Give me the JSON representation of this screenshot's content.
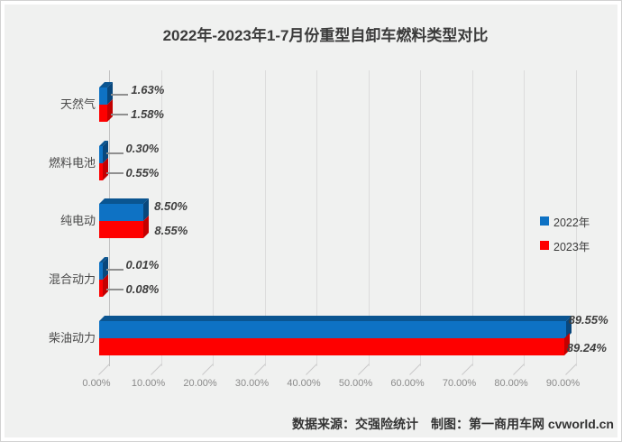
{
  "title": "2022年-2023年1-7月份重型自卸车燃料类型对比",
  "chart_data": {
    "type": "bar",
    "orientation": "horizontal",
    "style": "3d",
    "title": "2022年-2023年1-7月份重型自卸车燃料类型对比",
    "categories": [
      "天然气",
      "燃料电池",
      "纯电动",
      "混合动力",
      "柴油动力"
    ],
    "series": [
      {
        "name": "2022年",
        "color": "#0e72c4",
        "values": [
          1.63,
          0.3,
          8.5,
          0.01,
          89.55
        ],
        "labels": [
          "1.63%",
          "0.30%",
          "8.50%",
          "0.01%",
          "89.55%"
        ]
      },
      {
        "name": "2023年",
        "color": "#fe0000",
        "values": [
          1.58,
          0.55,
          8.55,
          0.08,
          89.24
        ],
        "labels": [
          "1.58%",
          "0.55%",
          "8.55%",
          "0.08%",
          "89.24%"
        ]
      }
    ],
    "x_ticks": [
      "0.00%",
      "10.00%",
      "20.00%",
      "30.00%",
      "40.00%",
      "50.00%",
      "60.00%",
      "70.00%",
      "80.00%",
      "90.00%"
    ],
    "xlim": [
      0,
      90
    ],
    "grid": true,
    "legend_position": "middle-right"
  },
  "legend": {
    "items": [
      {
        "label": "2022年",
        "color": "#0e72c4"
      },
      {
        "label": "2023年",
        "color": "#fe0000"
      }
    ]
  },
  "footer": {
    "text": "数据来源：交强险统计　制图：第一商用车网 cvworld.cn"
  }
}
